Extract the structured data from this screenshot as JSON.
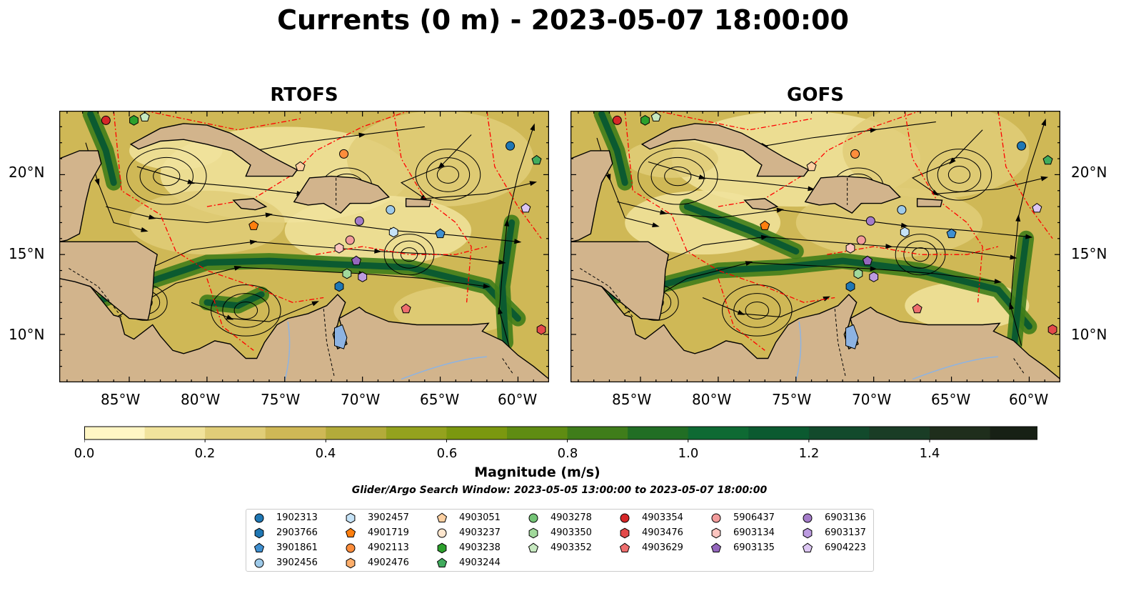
{
  "title": "Currents (0 m) - 2023-05-07 18:00:00",
  "panels": [
    {
      "title": "RTOFS"
    },
    {
      "title": "GOFS"
    }
  ],
  "axes": {
    "x_ticks": [
      "85°W",
      "80°W",
      "75°W",
      "70°W",
      "65°W",
      "60°W"
    ],
    "y_ticks": [
      "20°N",
      "15°N",
      "10°N"
    ],
    "lon_range": [
      -89.5,
      -58.0
    ],
    "lat_range": [
      7.0,
      24.0
    ]
  },
  "colorbar": {
    "label": "Magnitude (m/s)",
    "ticks": [
      "0.0",
      "0.2",
      "0.4",
      "0.6",
      "0.8",
      "1.0",
      "1.2",
      "1.4"
    ],
    "colors": [
      "#fff6c4",
      "#f1e39c",
      "#e0cd78",
      "#cfb856",
      "#b3ab3a",
      "#94a21e",
      "#7b980f",
      "#5f8c12",
      "#3f7d1a",
      "#216e24",
      "#0e6a33",
      "#0b5a30",
      "#124a2c",
      "#1a3d26",
      "#1f2e1c",
      "#172015"
    ],
    "extend": "max"
  },
  "search_window": "Glider/Argo Search Window: 2023-05-05 13:00:00 to 2023-05-07 18:00:00",
  "map_colors": {
    "land": "#d2b48c",
    "eez": "#ff0000",
    "streamline": "#000000",
    "lake": "#8db3e2"
  },
  "legend": [
    {
      "id": "1902313",
      "marker": "circle",
      "color": "#1f77b4"
    },
    {
      "id": "2903766",
      "marker": "hexagon",
      "color": "#1f77b4"
    },
    {
      "id": "3901861",
      "marker": "pentagon",
      "color": "#3f8fd0"
    },
    {
      "id": "3902456",
      "marker": "circle",
      "color": "#9ecae9"
    },
    {
      "id": "3902457",
      "marker": "hexagon",
      "color": "#c6e3f7"
    },
    {
      "id": "4901719",
      "marker": "pentagon",
      "color": "#ff7f0e"
    },
    {
      "id": "4902113",
      "marker": "circle",
      "color": "#fd8d3c"
    },
    {
      "id": "4902476",
      "marker": "hexagon",
      "color": "#fdae6b"
    },
    {
      "id": "4903051",
      "marker": "pentagon",
      "color": "#fdd0a2"
    },
    {
      "id": "4903237",
      "marker": "circle",
      "color": "#fee6ce"
    },
    {
      "id": "4903238",
      "marker": "hexagon",
      "color": "#2ca02c"
    },
    {
      "id": "4903244",
      "marker": "pentagon",
      "color": "#41ab5d"
    },
    {
      "id": "4903278",
      "marker": "circle",
      "color": "#74c476"
    },
    {
      "id": "4903350",
      "marker": "hexagon",
      "color": "#a1d99b"
    },
    {
      "id": "4903352",
      "marker": "pentagon",
      "color": "#c7e9c0"
    },
    {
      "id": "4903354",
      "marker": "circle",
      "color": "#d62728"
    },
    {
      "id": "4903476",
      "marker": "hexagon",
      "color": "#e34a4a"
    },
    {
      "id": "4903629",
      "marker": "pentagon",
      "color": "#ee6e6e"
    },
    {
      "id": "5906437",
      "marker": "circle",
      "color": "#f29b9b"
    },
    {
      "id": "6903134",
      "marker": "hexagon",
      "color": "#fcc5c0"
    },
    {
      "id": "6903135",
      "marker": "pentagon",
      "color": "#9467bd"
    },
    {
      "id": "6903136",
      "marker": "circle",
      "color": "#a47cc9"
    },
    {
      "id": "6903137",
      "marker": "hexagon",
      "color": "#bc9be0"
    },
    {
      "id": "6904223",
      "marker": "pentagon",
      "color": "#dcc6f2"
    }
  ],
  "float_positions": [
    {
      "id": "4903354",
      "lon": -86.5,
      "lat": 23.4,
      "panels": [
        0,
        1
      ]
    },
    {
      "id": "4903238",
      "lon": -84.7,
      "lat": 23.4,
      "panels": [
        0,
        1
      ]
    },
    {
      "id": "4903352",
      "lon": -84.0,
      "lat": 23.6,
      "panels": [
        0,
        1
      ]
    },
    {
      "id": "4902113",
      "lon": -71.2,
      "lat": 21.3,
      "panels": [
        0,
        1
      ]
    },
    {
      "id": "1902313",
      "lon": -60.5,
      "lat": 21.8,
      "panels": [
        0,
        1
      ]
    },
    {
      "id": "4903244",
      "lon": -58.8,
      "lat": 20.9,
      "panels": [
        0,
        1
      ]
    },
    {
      "id": "4903051",
      "lon": -74.0,
      "lat": 20.5,
      "panels": [
        0,
        1
      ]
    },
    {
      "id": "6904223",
      "lon": -59.5,
      "lat": 17.9,
      "panels": [
        0,
        1
      ]
    },
    {
      "id": "3902456",
      "lon": -68.2,
      "lat": 17.8,
      "panels": [
        0,
        1
      ]
    },
    {
      "id": "6903136",
      "lon": -70.2,
      "lat": 17.1,
      "panels": [
        0,
        1
      ]
    },
    {
      "id": "4901719",
      "lon": -77.0,
      "lat": 16.8,
      "panels": [
        0,
        1
      ]
    },
    {
      "id": "3902457",
      "lon": -68.0,
      "lat": 16.4,
      "panels": [
        0,
        1
      ]
    },
    {
      "id": "3901861",
      "lon": -65.0,
      "lat": 16.3,
      "panels": [
        0,
        1
      ]
    },
    {
      "id": "5906437",
      "lon": -70.8,
      "lat": 15.9,
      "panels": [
        0,
        1
      ]
    },
    {
      "id": "6903134",
      "lon": -71.5,
      "lat": 15.4,
      "panels": [
        0,
        1
      ]
    },
    {
      "id": "6903135",
      "lon": -70.4,
      "lat": 14.6,
      "panels": [
        0,
        1
      ]
    },
    {
      "id": "4903350",
      "lon": -71.0,
      "lat": 13.8,
      "panels": [
        0,
        1
      ]
    },
    {
      "id": "6903137",
      "lon": -70.0,
      "lat": 13.6,
      "panels": [
        0,
        1
      ]
    },
    {
      "id": "2903766",
      "lon": -71.5,
      "lat": 13.0,
      "panels": [
        0,
        1
      ]
    },
    {
      "id": "4903629",
      "lon": -67.2,
      "lat": 11.6,
      "panels": [
        0,
        1
      ]
    },
    {
      "id": "4903476",
      "lon": -58.5,
      "lat": 10.3,
      "panels": [
        0,
        1
      ]
    }
  ]
}
